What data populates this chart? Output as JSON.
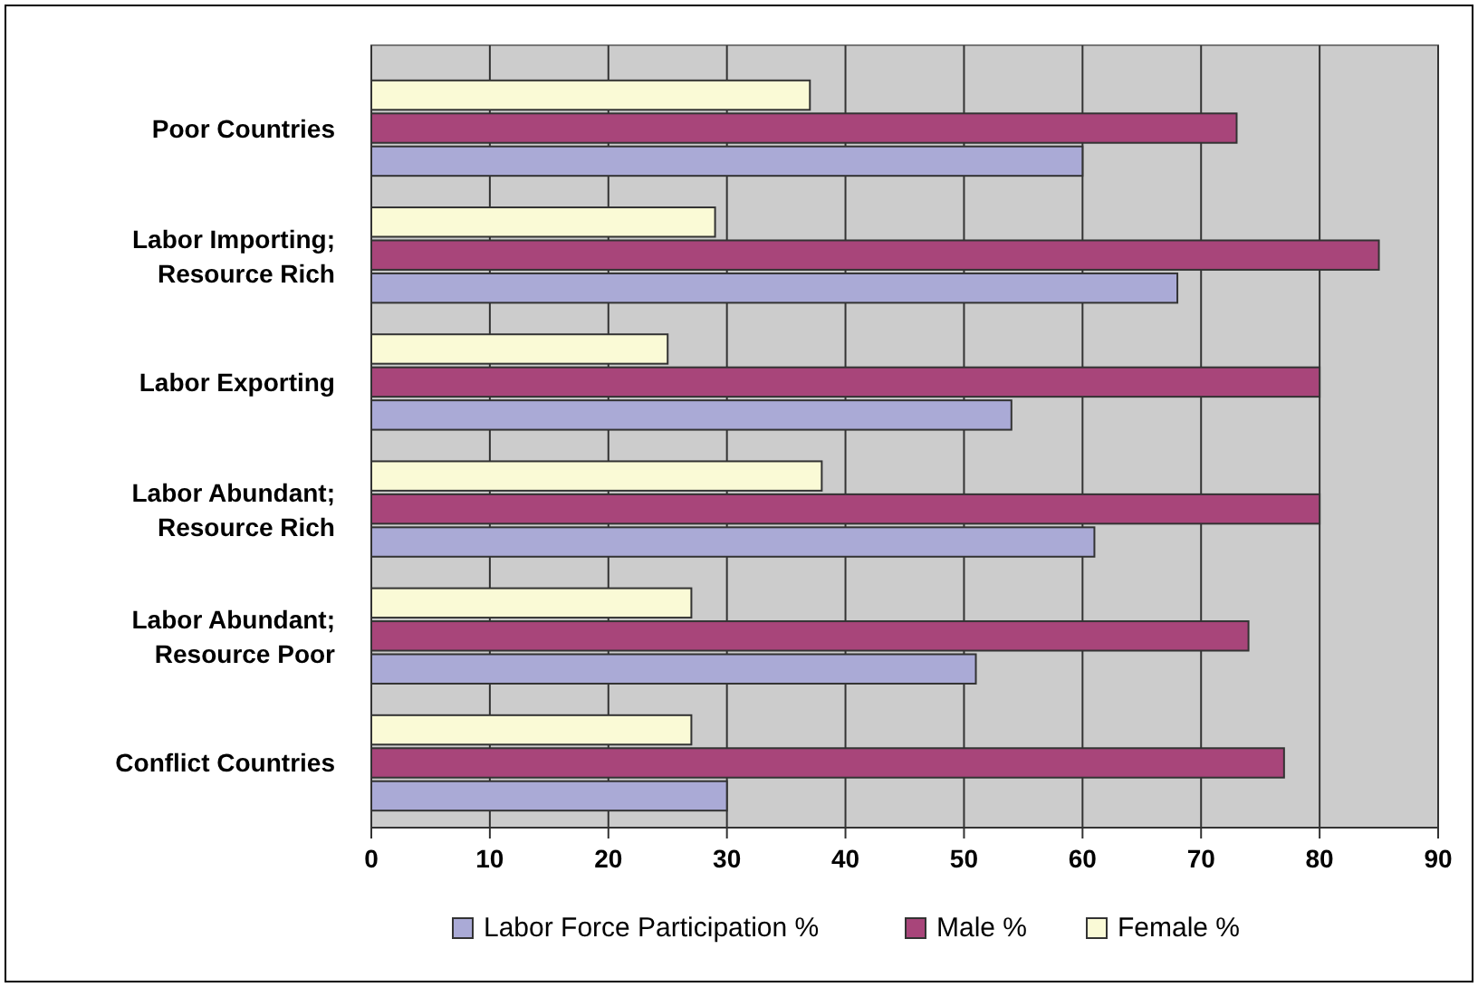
{
  "chart_data": {
    "type": "bar",
    "orientation": "horizontal",
    "categories": [
      "Poor Countries",
      "Labor Importing; Resource Rich",
      "Labor Exporting",
      "Labor Abundant; Resource Rich",
      "Labor Abundant; Resource Poor",
      "Conflict Countries"
    ],
    "series": [
      {
        "name": "Labor Force Participation %",
        "color": "#aaaad6",
        "values": [
          60,
          68,
          54,
          61,
          51,
          30
        ]
      },
      {
        "name": "Male %",
        "color": "#a8457a",
        "values": [
          73,
          85,
          80,
          80,
          74,
          77
        ]
      },
      {
        "name": "Female %",
        "color": "#fafad6",
        "values": [
          37,
          29,
          25,
          38,
          27,
          27
        ]
      }
    ],
    "xlim": [
      0,
      90
    ],
    "xticks": [
      0,
      10,
      20,
      30,
      40,
      50,
      60,
      70,
      80,
      90
    ],
    "grid": "x",
    "legend": "bottom"
  }
}
